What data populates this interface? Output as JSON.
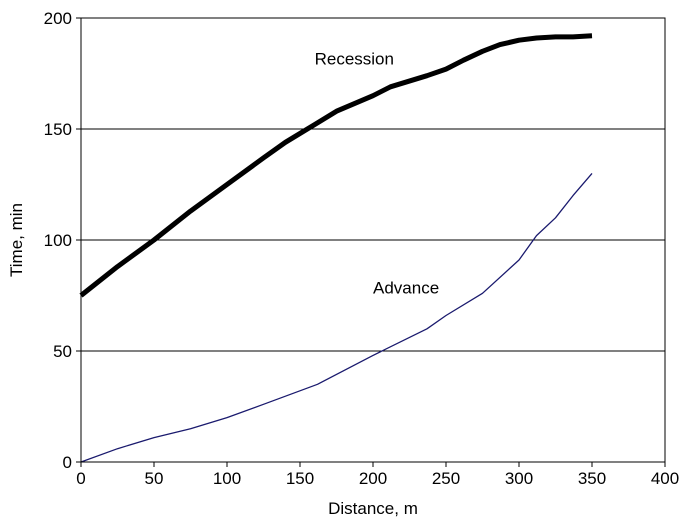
{
  "chart_data": {
    "type": "line",
    "title": "",
    "xlabel": "Distance, m",
    "ylabel": "Time, min",
    "xlim": [
      0,
      400
    ],
    "ylim": [
      0,
      200
    ],
    "xticks": [
      0,
      50,
      100,
      150,
      200,
      250,
      300,
      350,
      400
    ],
    "yticks": [
      0,
      50,
      100,
      150,
      200
    ],
    "x_tick_labels": [
      "0",
      "50",
      "100",
      "150",
      "200",
      "250",
      "300",
      "350",
      "400"
    ],
    "y_tick_labels": [
      "0",
      "50",
      "100",
      "150",
      "200"
    ],
    "grid": "horizontal",
    "legend": "none",
    "series": [
      {
        "name": "Recession",
        "color": "#000000",
        "x": [
          0,
          25,
          50,
          75,
          100,
          125,
          140,
          160,
          175,
          200,
          212,
          237,
          250,
          262,
          275,
          287,
          300,
          312,
          325,
          337,
          350
        ],
        "y": [
          75,
          88,
          100,
          113,
          125,
          137,
          144,
          152,
          158,
          165,
          169,
          174,
          177,
          181,
          185,
          188,
          190,
          191,
          191.5,
          191.5,
          192
        ]
      },
      {
        "name": "Advance",
        "color": "#1a1a6e",
        "x": [
          0,
          25,
          50,
          75,
          100,
          125,
          162,
          200,
          237,
          250,
          275,
          300,
          312,
          325,
          337,
          350
        ],
        "y": [
          0,
          6,
          11,
          15,
          20,
          26,
          35,
          48,
          60,
          66,
          76,
          91,
          102,
          110,
          120,
          130
        ]
      }
    ]
  }
}
